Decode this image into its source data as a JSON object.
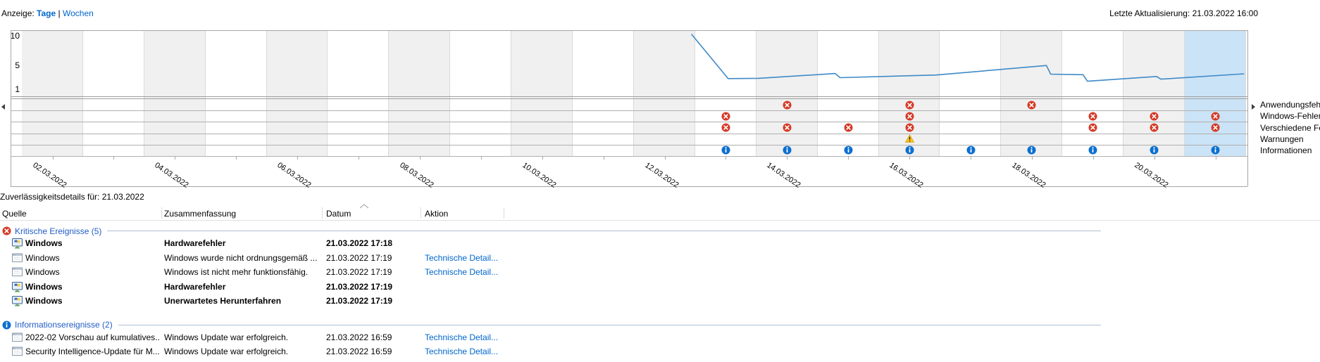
{
  "view_bar": {
    "label": "Anzeige:",
    "days": "Tage",
    "divider": "|",
    "weeks": "Wochen",
    "last_update": "Letzte Aktualisierung: 21.03.2022 16:00"
  },
  "chart_data": {
    "type": "line",
    "y_ticks": [
      10,
      5,
      1
    ],
    "y_range": [
      1,
      10
    ],
    "days_count": 20,
    "first_day": "02.03.2022",
    "last_day": "21.03.2022",
    "date_labels": [
      "02.03.2022",
      "04.03.2022",
      "06.03.2022",
      "08.03.2022",
      "10.03.2022",
      "12.03.2022",
      "14.03.2022",
      "16.03.2022",
      "18.03.2022",
      "20.03.2022"
    ],
    "highlighted_day_index": 19,
    "selected_day": "21.03.2022",
    "stability_line": [
      [
        10.95,
        10.3
      ],
      [
        11.55,
        2.8
      ],
      [
        12.05,
        2.85
      ],
      [
        13.3,
        3.65
      ],
      [
        13.38,
        2.95
      ],
      [
        14.95,
        3.4
      ],
      [
        16.75,
        5.0
      ],
      [
        16.82,
        3.55
      ],
      [
        17.35,
        3.45
      ],
      [
        17.42,
        2.35
      ],
      [
        18.55,
        3.15
      ],
      [
        18.62,
        2.7
      ],
      [
        19.98,
        3.6
      ]
    ],
    "event_rows": [
      {
        "label": "Anwendungsfehler",
        "icon": "error",
        "day_indices": [
          12,
          14,
          16
        ]
      },
      {
        "label": "Windows-Fehler",
        "icon": "error",
        "day_indices": [
          11,
          14,
          17,
          18,
          19
        ]
      },
      {
        "label": "Verschiedene Fehler",
        "icon": "error",
        "day_indices": [
          11,
          12,
          13,
          14,
          17,
          18,
          19
        ]
      },
      {
        "label": "Warnungen",
        "icon": "warning",
        "day_indices": [
          14
        ]
      },
      {
        "label": "Informationen",
        "icon": "info",
        "day_indices": [
          11,
          12,
          13,
          14,
          15,
          16,
          17,
          18,
          19
        ]
      }
    ]
  },
  "details": {
    "title": "Zuverlässigkeitsdetails für: 21.03.2022",
    "columns": [
      "Quelle",
      "Zusammenfassung",
      "Datum",
      "Aktion"
    ],
    "sorted_column": "Datum",
    "groups": [
      {
        "icon": "critical",
        "label": "Kritische Ereignisse (5)",
        "rows": [
          {
            "icon": "hardware",
            "source": "Windows",
            "summary": "Hardwarefehler",
            "date": "21.03.2022 17:18",
            "action": "",
            "bold": true
          },
          {
            "icon": "window",
            "source": "Windows",
            "summary": "Windows wurde nicht ordnungsgemäß ...",
            "date": "21.03.2022 17:19",
            "action": "Technische Detail...",
            "bold": false
          },
          {
            "icon": "window",
            "source": "Windows",
            "summary": "Windows ist nicht mehr funktionsfähig.",
            "date": "21.03.2022 17:19",
            "action": "Technische Detail...",
            "bold": false
          },
          {
            "icon": "hardware",
            "source": "Windows",
            "summary": "Hardwarefehler",
            "date": "21.03.2022 17:19",
            "action": "",
            "bold": true
          },
          {
            "icon": "hardware",
            "source": "Windows",
            "summary": "Unerwartetes Herunterfahren",
            "date": "21.03.2022 17:19",
            "action": "",
            "bold": true
          }
        ]
      },
      {
        "icon": "info",
        "label": "Informationsereignisse (2)",
        "rows": [
          {
            "icon": "window",
            "source": "2022-02 Vorschau auf kumulatives...",
            "summary": "Windows Update war erfolgreich.",
            "date": "21.03.2022 16:59",
            "action": "Technische Detail...",
            "bold": false
          },
          {
            "icon": "window",
            "source": "Security Intelligence-Update für M...",
            "summary": "Windows Update war erfolgreich.",
            "date": "21.03.2022 16:59",
            "action": "Technische Detail...",
            "bold": false
          }
        ]
      }
    ]
  },
  "colors": {
    "link": "#0066cc",
    "group_label": "#215dc6",
    "line": "#3e8ac8",
    "highlight_column": "#cbe3f6",
    "stripe_column": "#f0f0f0",
    "error_icon": "#d53a27",
    "info_icon": "#0c6fd0",
    "warning_icon": "#ffc515"
  }
}
